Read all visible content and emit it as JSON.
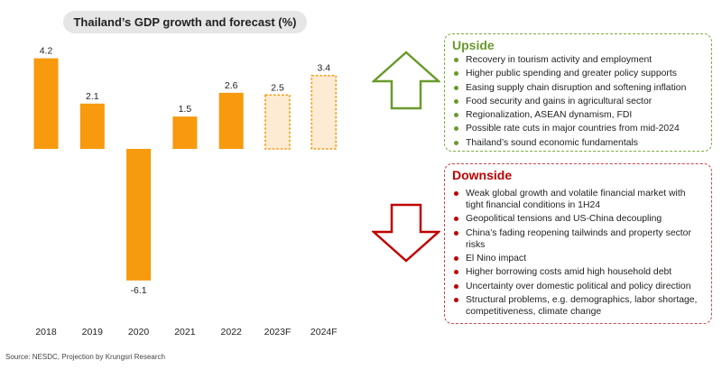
{
  "chart_data": {
    "type": "bar",
    "title": "Thailand’s GDP growth and forecast (%)",
    "categories": [
      "2018",
      "2019",
      "2020",
      "2021",
      "2022",
      "2023F",
      "2024F"
    ],
    "values": [
      4.2,
      2.1,
      -6.1,
      1.5,
      2.6,
      2.5,
      3.4
    ],
    "value_labels": [
      "4.2",
      "2.1",
      "-6.1",
      "1.5",
      "2.6",
      "2.5",
      "3.4"
    ],
    "forecast": [
      false,
      false,
      false,
      false,
      false,
      true,
      true
    ],
    "ylim": [
      -6.1,
      4.2
    ],
    "grid": false,
    "legend": "none",
    "xlabel": "",
    "ylabel": ""
  },
  "colors": {
    "bar": "#f79a0d",
    "forecast_fill": "#fdebd3",
    "forecast_border": "#f79a0d",
    "upside": "#6a9a2c",
    "upside_border": "#7cae3e",
    "downside": "#c00000",
    "downside_border": "#c84848"
  },
  "source": "Source: NESDC, Projection by Krungsri Research",
  "upside": {
    "title": "Upside",
    "icon": "up-arrow-icon",
    "items": [
      "Recovery in tourism activity and employment",
      "Higher public spending and greater policy supports",
      "Easing supply chain disruption and softening inflation",
      "Food security and gains in agricultural sector",
      "Regionalization, ASEAN dynamism, FDI",
      "Possible rate cuts in major countries from mid-2024",
      "Thailand’s sound economic fundamentals"
    ]
  },
  "downside": {
    "title": "Downside",
    "icon": "down-arrow-icon",
    "items": [
      "Weak global growth and volatile financial market with tight financial conditions in 1H24",
      "Geopolitical tensions and US-China decoupling",
      "China’s fading reopening tailwinds and property sector risks",
      "El Nino impact",
      "Higher borrowing costs amid high household debt",
      "Uncertainty over domestic political and policy direction",
      "Structural problems, e.g. demographics, labor shortage, competitiveness, climate change"
    ]
  }
}
